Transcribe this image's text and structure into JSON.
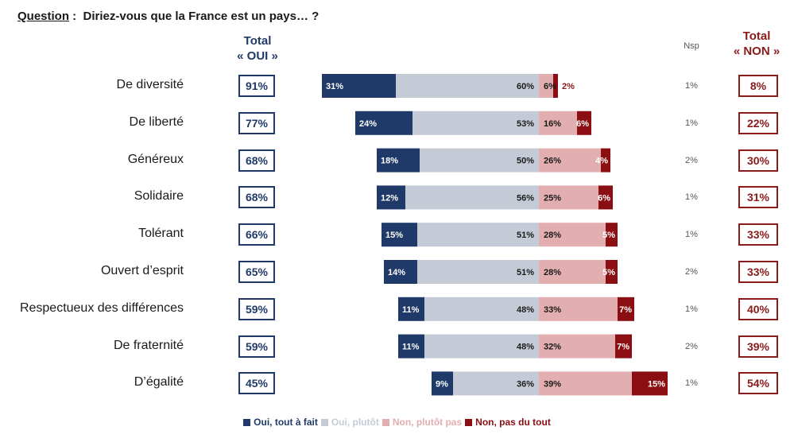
{
  "question": {
    "label": "Question",
    "separator": " :",
    "text": "Diriez-vous que la France est un pays… ?"
  },
  "headers": {
    "total_oui_line1": "Total",
    "total_oui_line2": "« OUI »",
    "nsp": "Nsp",
    "total_non_line1": "Total",
    "total_non_line2": "« NON »"
  },
  "colors": {
    "oui_tout_a_fait": "#1f3a68",
    "oui_plutot": "#c5cbd6",
    "non_plutot_pas": "#e3aeb0",
    "non_pas_du_tout": "#8b0f12",
    "total_oui": "#1f3a68",
    "total_non": "#8b1a1a"
  },
  "chart_data": {
    "type": "bar",
    "orientation": "horizontal",
    "stacked": "diverging",
    "categories": [
      "De diversité",
      "De liberté",
      "Généreux",
      "Solidaire",
      "Tolérant",
      "Ouvert d’esprit",
      "Respectueux des différences",
      "De fraternité",
      "D’égalité"
    ],
    "series": [
      {
        "name": "Oui, tout à fait",
        "values": [
          31,
          24,
          18,
          12,
          15,
          14,
          11,
          11,
          9
        ]
      },
      {
        "name": "Oui, plutôt",
        "values": [
          60,
          53,
          50,
          56,
          51,
          51,
          48,
          48,
          36
        ]
      },
      {
        "name": "Non, plutôt pas",
        "values": [
          6,
          16,
          26,
          25,
          28,
          28,
          33,
          32,
          39
        ]
      },
      {
        "name": "Non, pas du tout",
        "values": [
          2,
          6,
          4,
          6,
          5,
          5,
          7,
          7,
          15
        ]
      }
    ],
    "total_oui": [
      "91%",
      "77%",
      "68%",
      "68%",
      "66%",
      "65%",
      "59%",
      "59%",
      "45%"
    ],
    "nsp": [
      "1%",
      "1%",
      "2%",
      "1%",
      "1%",
      "2%",
      "1%",
      "2%",
      "1%"
    ],
    "total_non": [
      "8%",
      "22%",
      "30%",
      "31%",
      "33%",
      "33%",
      "40%",
      "39%",
      "54%"
    ],
    "legend_position": "bottom"
  }
}
